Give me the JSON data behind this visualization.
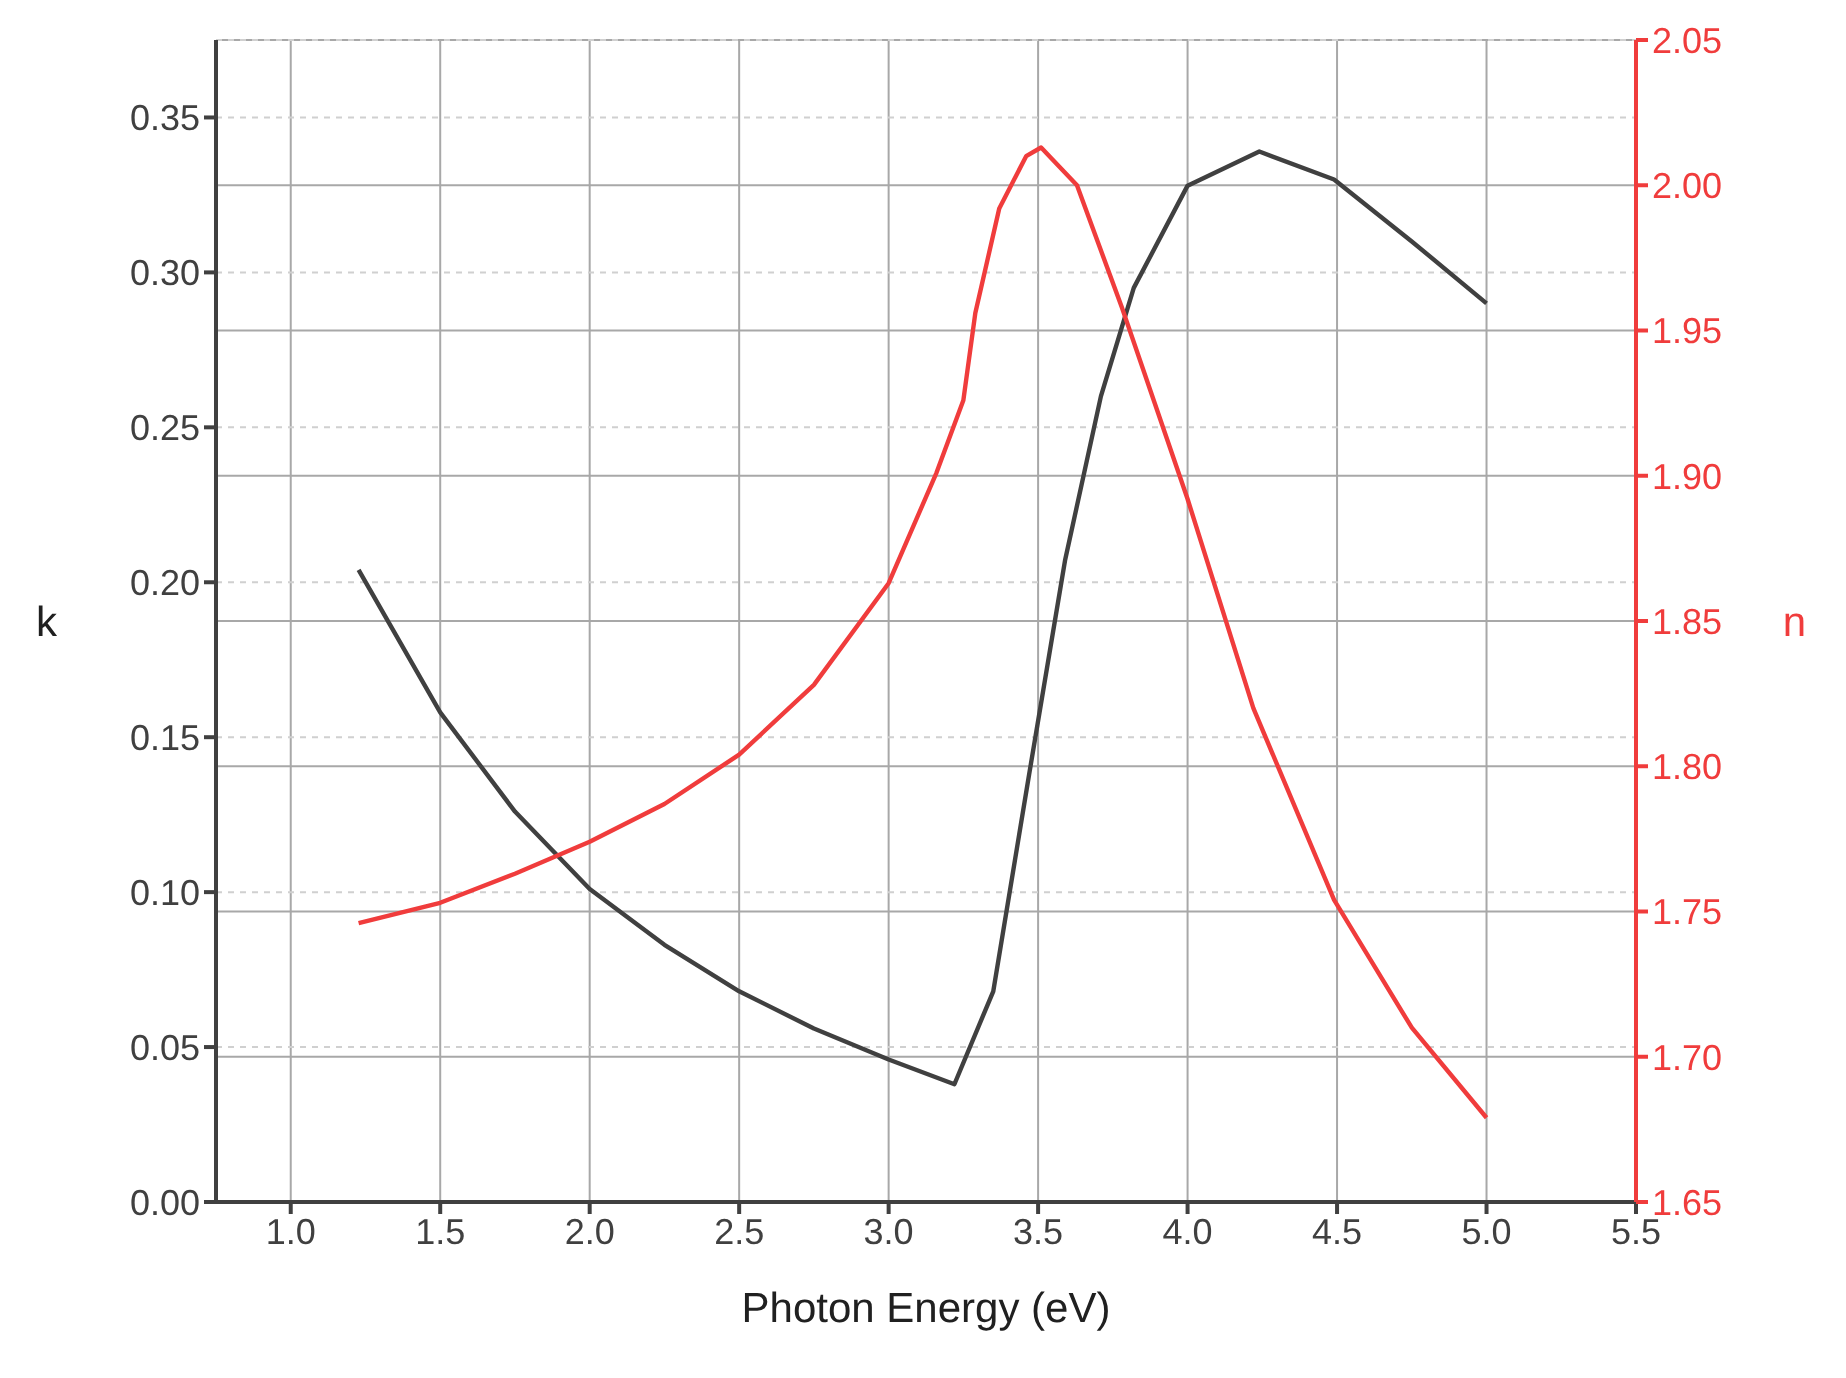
{
  "chart_data": {
    "type": "line",
    "xlabel": "Photon Energy (eV)",
    "ylabel": "k",
    "y2label": "n",
    "xlim": [
      0.75,
      5.5
    ],
    "xticks": [
      {
        "value": 1,
        "label": "1.0"
      },
      {
        "value": 1.5,
        "label": "1.5"
      },
      {
        "value": 2,
        "label": "2.0"
      },
      {
        "value": 2.5,
        "label": "2.5"
      },
      {
        "value": 3,
        "label": "3.0"
      },
      {
        "value": 3.5,
        "label": "3.5"
      },
      {
        "value": 4,
        "label": "4.0"
      },
      {
        "value": 4.5,
        "label": "4.5"
      },
      {
        "value": 5,
        "label": "5.0"
      },
      {
        "value": 5.5,
        "label": "5.5"
      }
    ],
    "ylim": [
      0,
      0.375
    ],
    "yticks": [
      {
        "value": 0,
        "label": "0.00"
      },
      {
        "value": 0.05,
        "label": "0.05"
      },
      {
        "value": 0.1,
        "label": "0.10"
      },
      {
        "value": 0.15,
        "label": "0.15"
      },
      {
        "value": 0.2,
        "label": "0.20"
      },
      {
        "value": 0.25,
        "label": "0.25"
      },
      {
        "value": 0.3,
        "label": "0.30"
      },
      {
        "value": 0.35,
        "label": "0.35"
      }
    ],
    "y2lim": [
      1.65,
      2.05
    ],
    "y2ticks": [
      1.65,
      {
        "value": 1.7,
        "label": "1.70"
      },
      1.75,
      {
        "value": 1.8,
        "label": "1.80"
      },
      1.85,
      {
        "value": 1.9,
        "label": "1.90"
      },
      1.95,
      {
        "value": 2,
        "label": "2.00"
      },
      2.05
    ],
    "grid": true,
    "legend": false,
    "marker": "none",
    "line_style": "solid",
    "series": [
      {
        "color": "#404040",
        "x": [
          1.227,
          1.5,
          1.75,
          2.0,
          2.25,
          2.5,
          2.75,
          3.0,
          3.22,
          3.35,
          3.47,
          3.59,
          3.71,
          3.82,
          4.0,
          4.24,
          4.49,
          4.75,
          5.0
        ],
        "values": [
          0.204,
          0.158,
          0.126,
          0.101,
          0.083,
          0.068,
          0.056,
          0.046,
          0.038,
          0.068,
          0.138,
          0.207,
          0.26,
          0.295,
          0.328,
          0.339,
          0.33,
          0.31,
          0.29
        ]
      },
      {
        "color": "#f03c3c",
        "axis": "y2",
        "x": [
          1.227,
          1.5,
          1.75,
          2.0,
          2.25,
          2.5,
          2.75,
          3.0,
          3.16,
          3.25,
          3.29,
          3.37,
          3.46,
          3.51,
          3.63,
          3.78,
          4.0,
          4.22,
          4.49,
          4.75,
          5.0
        ],
        "values": [
          1.746,
          1.753,
          1.763,
          1.774,
          1.787,
          1.804,
          1.828,
          1.863,
          1.901,
          1.926,
          1.956,
          1.992,
          2.01,
          2.013,
          2.0,
          1.958,
          1.892,
          1.82,
          1.754,
          1.71,
          1.679
        ]
      }
    ]
  }
}
